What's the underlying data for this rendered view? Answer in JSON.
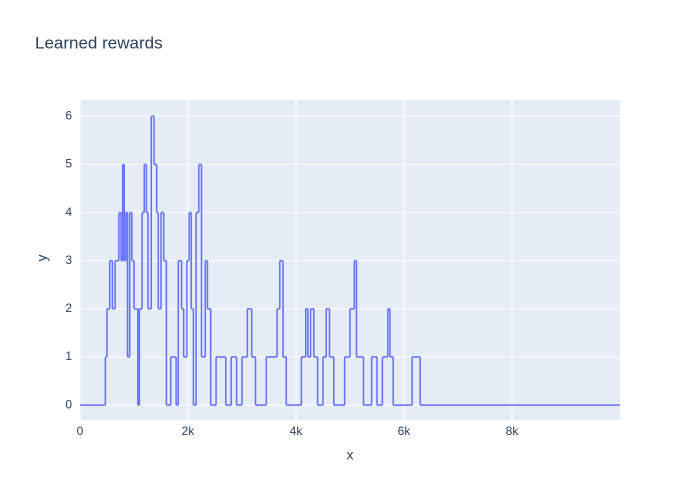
{
  "chart_data": {
    "type": "line",
    "line_shape": "hv",
    "title": "Learned rewards",
    "x_label": "x",
    "y_label": "y",
    "series": [
      {
        "color": "#636efa",
        "x": [
          0,
          470,
          500,
          550,
          600,
          650,
          720,
          760,
          790,
          820,
          850,
          880,
          920,
          960,
          1000,
          1070,
          1100,
          1150,
          1190,
          1230,
          1260,
          1320,
          1370,
          1420,
          1450,
          1500,
          1550,
          1600,
          1680,
          1780,
          1820,
          1880,
          1920,
          1980,
          2020,
          2060,
          2100,
          2150,
          2200,
          2250,
          2320,
          2360,
          2420,
          2520,
          2600,
          2700,
          2800,
          2900,
          3000,
          3100,
          3180,
          3250,
          3450,
          3650,
          3700,
          3760,
          3820,
          4100,
          4180,
          4220,
          4270,
          4330,
          4400,
          4500,
          4560,
          4620,
          4700,
          4900,
          5000,
          5080,
          5120,
          5250,
          5400,
          5500,
          5600,
          5700,
          5740,
          5800,
          6150,
          6300,
          10000
        ],
        "values": [
          0,
          1,
          2,
          3,
          2,
          3,
          4,
          3,
          5,
          3,
          4,
          1,
          4,
          3,
          2,
          0,
          2,
          4,
          5,
          4,
          2,
          6,
          5,
          4,
          2,
          4,
          3,
          0,
          1,
          0,
          3,
          2,
          1,
          3,
          4,
          2,
          0,
          4,
          5,
          1,
          3,
          2,
          0,
          1,
          1,
          0,
          1,
          0,
          1,
          2,
          1,
          0,
          1,
          2,
          3,
          1,
          0,
          1,
          2,
          1,
          2,
          1,
          0,
          1,
          2,
          1,
          0,
          1,
          2,
          3,
          1,
          0,
          1,
          0,
          1,
          2,
          1,
          0,
          1,
          0,
          0
        ]
      }
    ],
    "xlim": [
      0,
      10000
    ],
    "ylim": [
      -0.31,
      6.34
    ],
    "xticks": [
      0,
      {
        "value": 2000,
        "label": "2k"
      },
      {
        "value": 4000,
        "label": "4k"
      },
      {
        "value": 6000,
        "label": "6k"
      },
      {
        "value": 8000,
        "label": "8k"
      }
    ],
    "yticks": [
      0,
      1,
      2,
      3,
      4,
      5,
      6
    ],
    "grid": true,
    "background": "#e5ecf6"
  }
}
